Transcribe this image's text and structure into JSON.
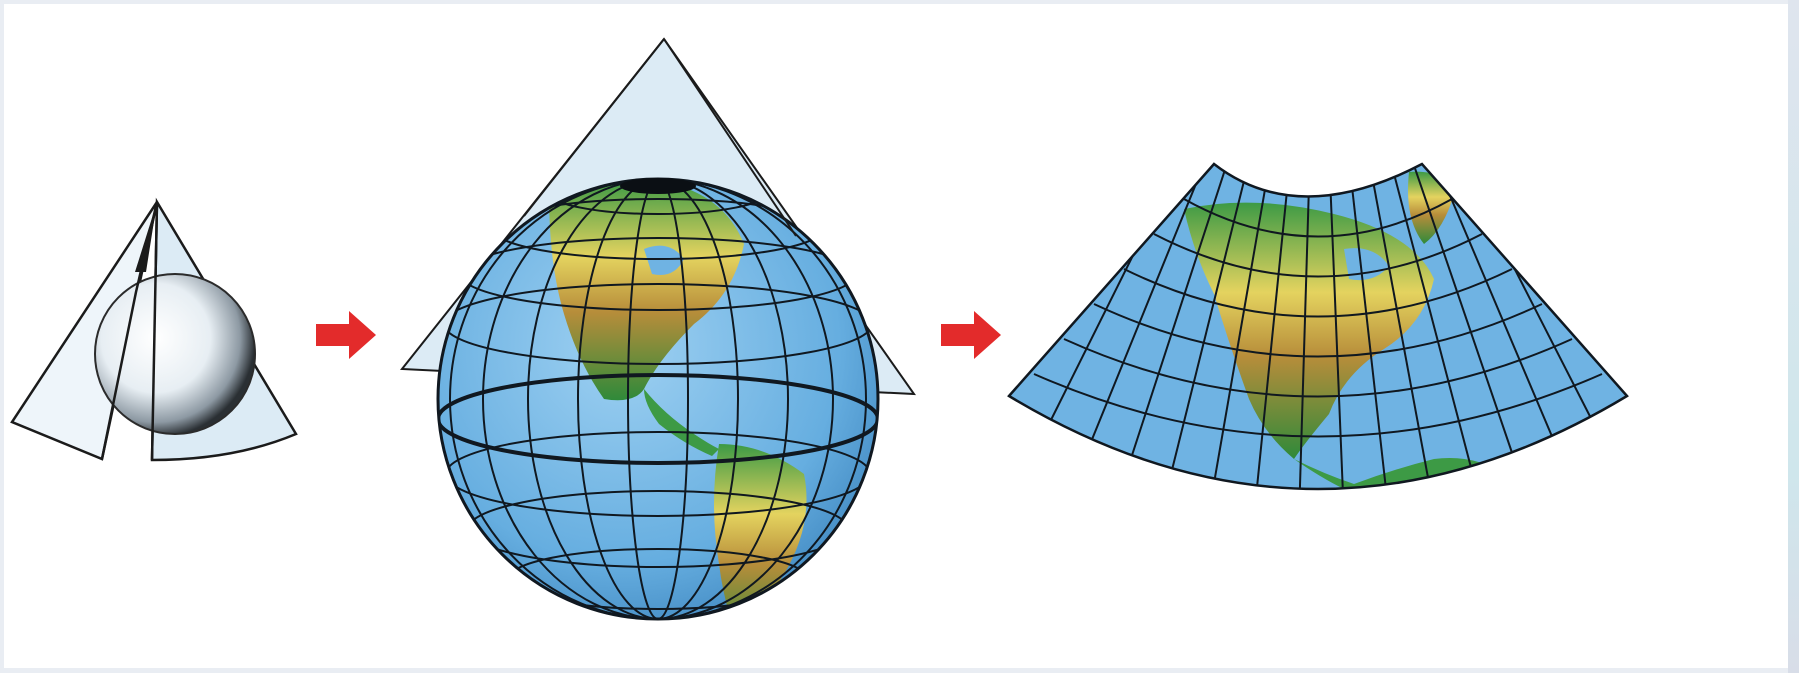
{
  "diagram": {
    "steps": [
      {
        "name": "cone-over-sphere"
      },
      {
        "name": "cone-tangent-to-globe"
      },
      {
        "name": "unrolled-conic-map"
      }
    ],
    "colors": {
      "ocean": "#6fb3e3",
      "land_green": "#2f8a3a",
      "land_yellow": "#e8d35a",
      "land_brown": "#b0822f",
      "graticule": "#101820",
      "cone_fill": "#dcebf5",
      "arrow": "#e32b2b"
    },
    "icons": [
      "globe-icon",
      "cone-icon",
      "arrow-right-icon",
      "map-icon"
    ]
  }
}
